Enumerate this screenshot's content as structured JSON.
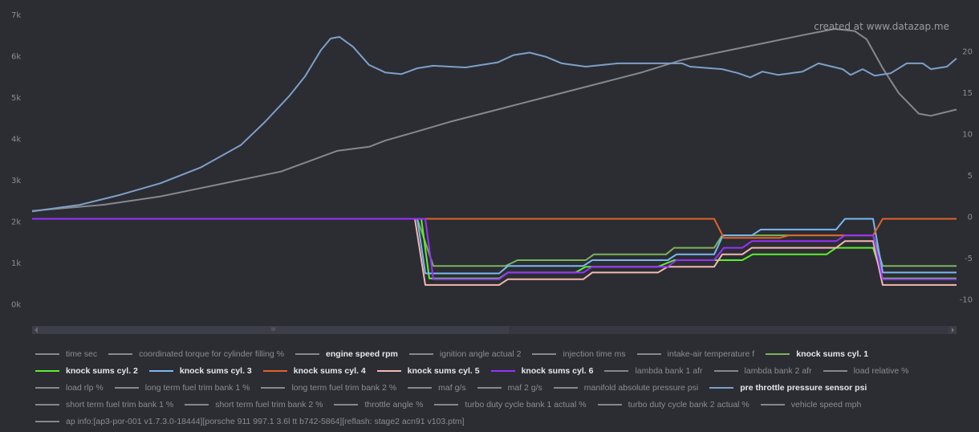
{
  "chart_data": {
    "type": "line",
    "title": "",
    "watermark": "created at www.datazap.me",
    "xlabel": "",
    "xlim": [
      0,
      115.2
    ],
    "left_axis": {
      "ylim": [
        0,
        7000
      ],
      "ticks": [
        0,
        1000,
        2000,
        3000,
        4000,
        5000,
        6000,
        7000
      ],
      "tick_labels": [
        "0k",
        "1k",
        "2k",
        "3k",
        "4k",
        "5k",
        "6k",
        "7k"
      ]
    },
    "right_axis": {
      "ylim": [
        -10,
        20
      ],
      "ticks": [
        -10,
        -5,
        0,
        5,
        10,
        15,
        20
      ],
      "tick_labels": [
        "-10",
        "-5",
        "0",
        "5",
        "10",
        "15",
        "20"
      ]
    },
    "grid": false,
    "legend_position": "bottom",
    "series": [
      {
        "name": "engine speed rpm",
        "axis": "left",
        "color": "#85888e",
        "points": [
          [
            0,
            2250
          ],
          [
            9,
            2400
          ],
          [
            16,
            2600
          ],
          [
            21,
            2800
          ],
          [
            26,
            3000
          ],
          [
            31,
            3200
          ],
          [
            38,
            3700
          ],
          [
            42,
            3800
          ],
          [
            44,
            3950
          ],
          [
            48,
            4170
          ],
          [
            52,
            4400
          ],
          [
            56,
            4600
          ],
          [
            61,
            4850
          ],
          [
            66,
            5100
          ],
          [
            71,
            5350
          ],
          [
            76,
            5600
          ],
          [
            81,
            5900
          ],
          [
            86,
            6100
          ],
          [
            91,
            6300
          ],
          [
            96,
            6500
          ],
          [
            100,
            6650
          ],
          [
            102.5,
            6600
          ],
          [
            104,
            6400
          ],
          [
            106,
            5700
          ],
          [
            108,
            5100
          ],
          [
            110.5,
            4600
          ],
          [
            112,
            4550
          ],
          [
            115.2,
            4700
          ]
        ]
      },
      {
        "name": "pre throttle pressure sensor psi",
        "axis": "right",
        "color": "#7f9fc8",
        "points": [
          [
            0,
            0.9
          ],
          [
            6,
            1.7
          ],
          [
            11,
            2.9
          ],
          [
            16,
            4.3
          ],
          [
            21,
            6.2
          ],
          [
            26,
            8.9
          ],
          [
            29,
            11.7
          ],
          [
            32,
            14.8
          ],
          [
            34,
            17.2
          ],
          [
            36,
            20.4
          ],
          [
            37.2,
            21.8
          ],
          [
            38.3,
            22
          ],
          [
            40,
            20.8
          ],
          [
            42,
            18.6
          ],
          [
            44,
            17.7
          ],
          [
            46,
            17.5
          ],
          [
            48,
            18.2
          ],
          [
            50,
            18.5
          ],
          [
            54,
            18.3
          ],
          [
            58,
            18.9
          ],
          [
            60,
            19.8
          ],
          [
            62,
            20.1
          ],
          [
            64,
            19.6
          ],
          [
            66,
            18.8
          ],
          [
            69,
            18.4
          ],
          [
            73,
            18.8
          ],
          [
            81,
            18.8
          ],
          [
            82,
            18.4
          ],
          [
            86,
            18.1
          ],
          [
            88,
            17.6
          ],
          [
            89.5,
            17.1
          ],
          [
            91,
            17.8
          ],
          [
            93,
            17.4
          ],
          [
            96,
            17.8
          ],
          [
            98,
            18.8
          ],
          [
            101,
            18.1
          ],
          [
            102,
            17.4
          ],
          [
            103.5,
            18.1
          ],
          [
            105,
            17.3
          ],
          [
            107,
            17.6
          ],
          [
            109,
            18.8
          ],
          [
            111,
            18.8
          ],
          [
            112,
            18.1
          ],
          [
            114,
            18.4
          ],
          [
            115.2,
            19.4
          ]
        ]
      },
      {
        "name": "knock sums cyl. 1",
        "axis": "right",
        "color": "#7db35a",
        "points": [
          [
            0,
            0
          ],
          [
            48,
            0
          ],
          [
            50,
            -5.7
          ],
          [
            59,
            -5.7
          ],
          [
            60.5,
            -5.0
          ],
          [
            69,
            -5.0
          ],
          [
            70,
            -4.3
          ],
          [
            79,
            -4.3
          ],
          [
            80,
            -3.5
          ],
          [
            85,
            -3.5
          ],
          [
            86,
            -2.0
          ],
          [
            104.8,
            -2.0
          ],
          [
            106,
            -5.7
          ],
          [
            115.2,
            -5.7
          ]
        ]
      },
      {
        "name": "knock sums cyl. 2",
        "axis": "right",
        "color": "#5ef02c",
        "points": [
          [
            0,
            0
          ],
          [
            48.5,
            0
          ],
          [
            49.5,
            -7.2
          ],
          [
            58.2,
            -7.2
          ],
          [
            59.3,
            -6.5
          ],
          [
            67.7,
            -6.5
          ],
          [
            69,
            -5.8
          ],
          [
            78,
            -5.8
          ],
          [
            80,
            -5.0
          ],
          [
            88.5,
            -5.0
          ],
          [
            89.8,
            -4.3
          ],
          [
            99,
            -4.3
          ],
          [
            100.2,
            -3.5
          ],
          [
            104.8,
            -3.5
          ],
          [
            106,
            -7.2
          ],
          [
            115.2,
            -7.2
          ]
        ]
      },
      {
        "name": "knock sums cyl. 3",
        "axis": "right",
        "color": "#7ab8f0",
        "points": [
          [
            0,
            0
          ],
          [
            48,
            0
          ],
          [
            49,
            -6.6
          ],
          [
            58.2,
            -6.6
          ],
          [
            59.3,
            -5.7
          ],
          [
            68.7,
            -5.7
          ],
          [
            69.8,
            -5.0
          ],
          [
            79.2,
            -5.0
          ],
          [
            80.3,
            -4.3
          ],
          [
            85,
            -4.3
          ],
          [
            86.1,
            -2.0
          ],
          [
            89.7,
            -2.0
          ],
          [
            90.8,
            -1.3
          ],
          [
            100.2,
            -1.3
          ],
          [
            101.3,
            0
          ],
          [
            104.8,
            0
          ],
          [
            106,
            -6.5
          ],
          [
            115.2,
            -6.5
          ]
        ]
      },
      {
        "name": "knock sums cyl. 4",
        "axis": "right",
        "color": "#e0622a",
        "points": [
          [
            0,
            0
          ],
          [
            85,
            0
          ],
          [
            86.2,
            -2.3
          ],
          [
            93.2,
            -2.3
          ],
          [
            94.3,
            -2.0
          ],
          [
            104.8,
            -2.0
          ],
          [
            106,
            0
          ],
          [
            115.2,
            0
          ]
        ]
      },
      {
        "name": "knock sums cyl. 5",
        "axis": "right",
        "color": "#f5b8b0",
        "points": [
          [
            0,
            0
          ],
          [
            47.7,
            0
          ],
          [
            49,
            -8.0
          ],
          [
            58.2,
            -8.0
          ],
          [
            59.3,
            -7.3
          ],
          [
            68.7,
            -7.3
          ],
          [
            69.8,
            -6.5
          ],
          [
            78,
            -6.5
          ],
          [
            79.2,
            -5.8
          ],
          [
            85,
            -5.8
          ],
          [
            86,
            -4.3
          ],
          [
            88.5,
            -4.3
          ],
          [
            89.7,
            -3.5
          ],
          [
            100.2,
            -3.5
          ],
          [
            101.3,
            -2.7
          ],
          [
            104.8,
            -2.7
          ],
          [
            106,
            -8.0
          ],
          [
            115.2,
            -8.0
          ]
        ]
      },
      {
        "name": "knock sums cyl. 6",
        "axis": "right",
        "color": "#9b30ff",
        "points": [
          [
            0,
            0
          ],
          [
            49,
            0
          ],
          [
            50,
            -7.3
          ],
          [
            58.2,
            -7.3
          ],
          [
            59.3,
            -6.5
          ],
          [
            68.7,
            -6.5
          ],
          [
            69.8,
            -5.8
          ],
          [
            79.2,
            -5.8
          ],
          [
            80.3,
            -5.0
          ],
          [
            85,
            -5.0
          ],
          [
            86.2,
            -3.5
          ],
          [
            88.5,
            -3.5
          ],
          [
            89.7,
            -2.7
          ],
          [
            100.2,
            -2.7
          ],
          [
            101.3,
            -2.0
          ],
          [
            104.8,
            -2.0
          ],
          [
            106,
            -7.3
          ],
          [
            115.2,
            -7.3
          ]
        ]
      }
    ]
  },
  "legend": {
    "rows": [
      [
        {
          "label": "time sec",
          "color": "#85888e",
          "bold": false
        },
        {
          "label": "coordinated torque for cylinder filling %",
          "color": "#85888e",
          "bold": false
        },
        {
          "label": "engine speed rpm",
          "color": "#85888e",
          "bold": true
        },
        {
          "label": "ignition angle actual 2",
          "color": "#85888e",
          "bold": false
        },
        {
          "label": "injection time ms",
          "color": "#85888e",
          "bold": false
        },
        {
          "label": "intake-air temperature f",
          "color": "#85888e",
          "bold": false
        },
        {
          "label": "knock sums cyl. 1",
          "color": "#7db35a",
          "bold": true
        }
      ],
      [
        {
          "label": "knock sums cyl. 2",
          "color": "#5ef02c",
          "bold": true
        },
        {
          "label": "knock sums cyl. 3",
          "color": "#7ab8f0",
          "bold": true
        },
        {
          "label": "knock sums cyl. 4",
          "color": "#e0622a",
          "bold": true
        },
        {
          "label": "knock sums cyl. 5",
          "color": "#f5b8b0",
          "bold": true
        },
        {
          "label": "knock sums cyl. 6",
          "color": "#9b30ff",
          "bold": true
        },
        {
          "label": "lambda bank 1 afr",
          "color": "#85888e",
          "bold": false
        },
        {
          "label": "lambda bank 2 afr",
          "color": "#85888e",
          "bold": false
        },
        {
          "label": "load relative %",
          "color": "#85888e",
          "bold": false
        }
      ],
      [
        {
          "label": "load rlp %",
          "color": "#85888e",
          "bold": false
        },
        {
          "label": "long term fuel trim bank 1 %",
          "color": "#85888e",
          "bold": false
        },
        {
          "label": "long term fuel trim bank 2 %",
          "color": "#85888e",
          "bold": false
        },
        {
          "label": "maf g/s",
          "color": "#85888e",
          "bold": false
        },
        {
          "label": "maf 2 g/s",
          "color": "#85888e",
          "bold": false
        },
        {
          "label": "manifold absolute pressure psi",
          "color": "#85888e",
          "bold": false
        },
        {
          "label": "pre throttle pressure sensor psi",
          "color": "#7f9fc8",
          "bold": true
        }
      ],
      [
        {
          "label": "short term fuel trim bank 1 %",
          "color": "#85888e",
          "bold": false
        },
        {
          "label": "short term fuel trim bank 2 %",
          "color": "#85888e",
          "bold": false
        },
        {
          "label": "throttle angle %",
          "color": "#85888e",
          "bold": false
        },
        {
          "label": "turbo duty cycle bank 1 actual %",
          "color": "#85888e",
          "bold": false
        },
        {
          "label": "turbo duty cycle bank 2 actual %",
          "color": "#85888e",
          "bold": false
        },
        {
          "label": "vehicle speed mph",
          "color": "#85888e",
          "bold": false
        }
      ],
      [
        {
          "label": "ap info:[ap3-por-001 v1.7.3.0-18444][porsche 911 997.1 3.6l tt b742-5864][reflash: stage2 acn91 v103.ptm]",
          "color": "#85888e",
          "bold": false
        }
      ]
    ]
  },
  "scrollbar": {
    "grip": "III"
  }
}
